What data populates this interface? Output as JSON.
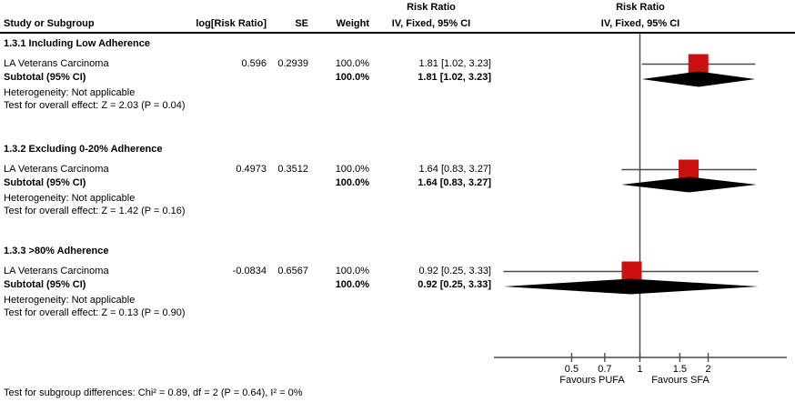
{
  "header": {
    "effect_col": {
      "title": "Risk Ratio",
      "subtitle": "IV, Fixed, 95% CI"
    },
    "plot_col": {
      "title": "Risk Ratio",
      "subtitle": "IV, Fixed, 95% CI"
    },
    "columns": {
      "study": "Study or Subgroup",
      "log_rr": "log[Risk Ratio]",
      "se": "SE",
      "weight": "Weight"
    }
  },
  "subgroups": [
    {
      "title": "1.3.1 Including Low Adherence",
      "study": {
        "name": "LA Veterans Carcinoma",
        "log_rr": "0.596",
        "se": "0.2939",
        "weight": "100.0%",
        "ci": "1.81 [1.02, 3.23]"
      },
      "subtotal": {
        "label": "Subtotal (95% CI)",
        "weight": "100.0%",
        "ci": "1.81 [1.02, 3.23]"
      },
      "heterogeneity": "Heterogeneity: Not applicable",
      "overall": "Test for overall effect: Z = 2.03 (P = 0.04)"
    },
    {
      "title": "1.3.2 Excluding 0-20% Adherence",
      "study": {
        "name": "LA Veterans Carcinoma",
        "log_rr": "0.4973",
        "se": "0.3512",
        "weight": "100.0%",
        "ci": "1.64 [0.83, 3.27]"
      },
      "subtotal": {
        "label": "Subtotal (95% CI)",
        "weight": "100.0%",
        "ci": "1.64 [0.83, 3.27]"
      },
      "heterogeneity": "Heterogeneity: Not applicable",
      "overall": "Test for overall effect: Z = 1.42 (P = 0.16)"
    },
    {
      "title": "1.3.3 >80% Adherence",
      "study": {
        "name": "LA Veterans Carcinoma",
        "log_rr": "-0.0834",
        "se": "0.6567",
        "weight": "100.0%",
        "ci": "0.92 [0.25, 3.33]"
      },
      "subtotal": {
        "label": "Subtotal (95% CI)",
        "weight": "100.0%",
        "ci": "0.92 [0.25, 3.33]"
      },
      "heterogeneity": "Heterogeneity: Not applicable",
      "overall": "Test for overall effect: Z = 0.13 (P = 0.90)"
    }
  ],
  "axis": {
    "tick_labels": [
      "0.5",
      "0.7",
      "1",
      "1.5",
      "2"
    ],
    "favours_left": "Favours PUFA",
    "favours_right": "Favours SFA"
  },
  "footer": {
    "subgroup_diff": "Test for subgroup differences: Chi² = 0.89, df = 2 (P = 0.64), I² = 0%"
  },
  "chart_data": {
    "type": "forest",
    "effect_measure": "Risk Ratio",
    "method": "IV, Fixed, 95% CI",
    "x_scale": "log",
    "null_line": 1,
    "x_ticks": [
      0.5,
      0.7,
      1,
      1.5,
      2
    ],
    "x_tick_labels": [
      "0.5",
      "0.7",
      "1",
      "1.5",
      "2"
    ],
    "groups": [
      {
        "label": "1.3.1 Including Low Adherence",
        "study": {
          "name": "LA Veterans Carcinoma",
          "log_rr": 0.596,
          "se": 0.2939,
          "weight_pct": 100.0,
          "rr": 1.81,
          "ci_low": 1.02,
          "ci_high": 3.23
        },
        "subtotal": {
          "rr": 1.81,
          "ci_low": 1.02,
          "ci_high": 3.23,
          "weight_pct": 100.0,
          "z": 2.03,
          "p": 0.04
        }
      },
      {
        "label": "1.3.2 Excluding 0-20% Adherence",
        "study": {
          "name": "LA Veterans Carcinoma",
          "log_rr": 0.4973,
          "se": 0.3512,
          "weight_pct": 100.0,
          "rr": 1.64,
          "ci_low": 0.83,
          "ci_high": 3.27
        },
        "subtotal": {
          "rr": 1.64,
          "ci_low": 0.83,
          "ci_high": 3.27,
          "weight_pct": 100.0,
          "z": 1.42,
          "p": 0.16
        }
      },
      {
        "label": "1.3.3 >80% Adherence",
        "study": {
          "name": "LA Veterans Carcinoma",
          "log_rr": -0.0834,
          "se": 0.6567,
          "weight_pct": 100.0,
          "rr": 0.92,
          "ci_low": 0.25,
          "ci_high": 3.33
        },
        "subtotal": {
          "rr": 0.92,
          "ci_low": 0.25,
          "ci_high": 3.33,
          "weight_pct": 100.0,
          "z": 0.13,
          "p": 0.9
        }
      }
    ],
    "subgroup_difference": {
      "chi2": 0.89,
      "df": 2,
      "p": 0.64,
      "i2_pct": 0
    },
    "legend": {
      "favours_left": "Favours PUFA",
      "favours_right": "Favours SFA"
    },
    "colors": {
      "square": "#cc1010",
      "diamond": "#000000",
      "line": "#4a4a4a"
    }
  }
}
